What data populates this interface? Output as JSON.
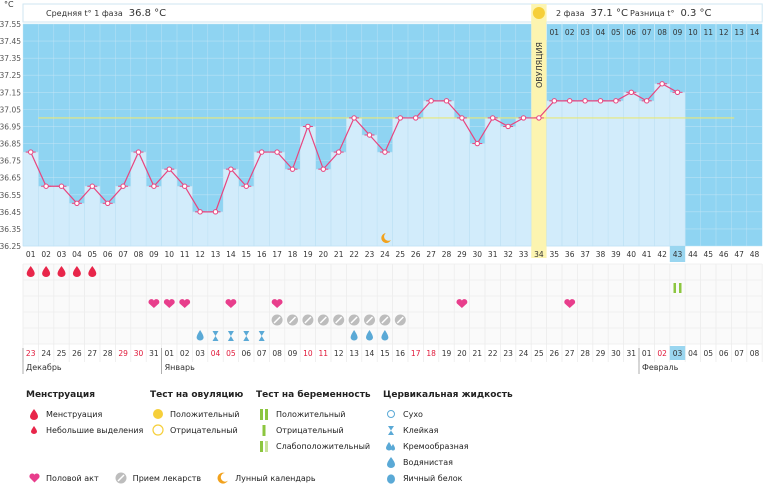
{
  "header": {
    "unit": "°C",
    "phase1_label": "Средняя t° 1 фаза",
    "phase1_value": "36.8 °C",
    "phase2_label": "2 фаза",
    "phase2_value": "37.1 °C",
    "diff_label": "Разница t°",
    "diff_value": "0.3 °C",
    "ovulation_label": "ОВУЛЯЦИЯ"
  },
  "colors": {
    "phase_bg": "#8fd4f2",
    "bar_fill": "#d2ecfb",
    "line": "#e8457f",
    "coverline": "#e8e87a",
    "ovulation": "#fcf4b0",
    "today_cell": "#9ad6f0",
    "red_date": "#e0193a"
  },
  "chart_data": {
    "type": "line",
    "y_ticks": [
      "37.55",
      "37.45",
      "37.35",
      "37.25",
      "37.15",
      "37.05",
      "36.95",
      "36.85",
      "36.75",
      "36.65",
      "36.55",
      "36.45",
      "36.35",
      "36.25"
    ],
    "ylim": [
      36.25,
      37.55
    ],
    "cycle_days": [
      "01",
      "02",
      "03",
      "04",
      "05",
      "06",
      "07",
      "08",
      "09",
      "10",
      "11",
      "12",
      "13",
      "14",
      "15",
      "16",
      "17",
      "18",
      "19",
      "20",
      "21",
      "22",
      "23",
      "24",
      "25",
      "26",
      "27",
      "28",
      "29",
      "30",
      "31",
      "32",
      "33",
      "34",
      "35",
      "36",
      "37",
      "38",
      "39",
      "40",
      "41",
      "42",
      "43",
      "44",
      "45",
      "46",
      "47",
      "48"
    ],
    "phase2_days": [
      "01",
      "02",
      "03",
      "04",
      "05",
      "06",
      "07",
      "08",
      "09",
      "10",
      "11",
      "12",
      "13",
      "14"
    ],
    "temperatures": [
      36.8,
      36.6,
      36.6,
      36.5,
      36.6,
      36.5,
      36.6,
      36.8,
      36.6,
      36.7,
      36.6,
      36.45,
      36.45,
      36.7,
      36.6,
      36.8,
      36.8,
      36.7,
      36.95,
      36.7,
      36.8,
      37.0,
      36.9,
      36.8,
      37.0,
      37.0,
      37.1,
      37.1,
      37.0,
      36.85,
      37.0,
      36.95,
      37.0,
      37.0,
      37.1,
      37.1,
      37.1,
      37.1,
      37.1,
      37.15,
      37.1,
      37.2,
      37.15
    ],
    "coverline": 37.0,
    "ovulation_day": 34,
    "today_day": 43,
    "moon_day": 24,
    "calendar_dates": [
      "23",
      "24",
      "25",
      "26",
      "27",
      "28",
      "29",
      "30",
      "31",
      "01",
      "02",
      "03",
      "04",
      "05",
      "06",
      "07",
      "08",
      "09",
      "10",
      "11",
      "12",
      "13",
      "14",
      "15",
      "16",
      "17",
      "18",
      "19",
      "20",
      "21",
      "22",
      "23",
      "24",
      "25",
      "26",
      "27",
      "28",
      "29",
      "30",
      "31",
      "01",
      "02",
      "03",
      "04",
      "05",
      "06",
      "07",
      "08"
    ],
    "red_date_indexes": [
      0,
      6,
      7,
      12,
      13,
      18,
      19,
      25,
      26,
      41
    ],
    "months": [
      {
        "label": "Декабрь",
        "start": 0
      },
      {
        "label": "Январь",
        "start": 9
      },
      {
        "label": "Февраль",
        "start": 40
      }
    ],
    "events": {
      "menstruation_days": [
        1,
        2,
        3,
        4,
        5
      ],
      "intercourse_days": [
        9,
        10,
        11,
        14,
        17,
        29,
        36
      ],
      "medication_days": [
        17,
        18,
        19,
        20,
        21,
        22,
        23,
        24,
        25
      ],
      "mucus_watery_days": [
        12,
        22,
        23,
        24
      ],
      "mucus_sticky_days": [
        13,
        14,
        15,
        16
      ],
      "mucus_eggwhite_days": [],
      "pregnancy_test_weak_days": [
        43
      ]
    }
  },
  "legend": {
    "menstruation": {
      "title": "Менструация",
      "items": [
        "Менструация",
        "Небольшие выделения"
      ]
    },
    "ovulation_test": {
      "title": "Тест на овуляцию",
      "items": [
        "Положительный",
        "Отрицательный"
      ]
    },
    "pregnancy_test": {
      "title": "Тест на беременность",
      "items": [
        "Положительный",
        "Отрицательный",
        "Слабоположительный"
      ]
    },
    "cervical_fluid": {
      "title": "Цервикальная жидкость",
      "items": [
        "Сухо",
        "Клейкая",
        "Кремообразная",
        "Водянистая",
        "Яичный белок"
      ]
    },
    "other": {
      "intercourse": "Половой акт",
      "medication": "Прием лекарств",
      "lunar": "Лунный календарь"
    }
  }
}
